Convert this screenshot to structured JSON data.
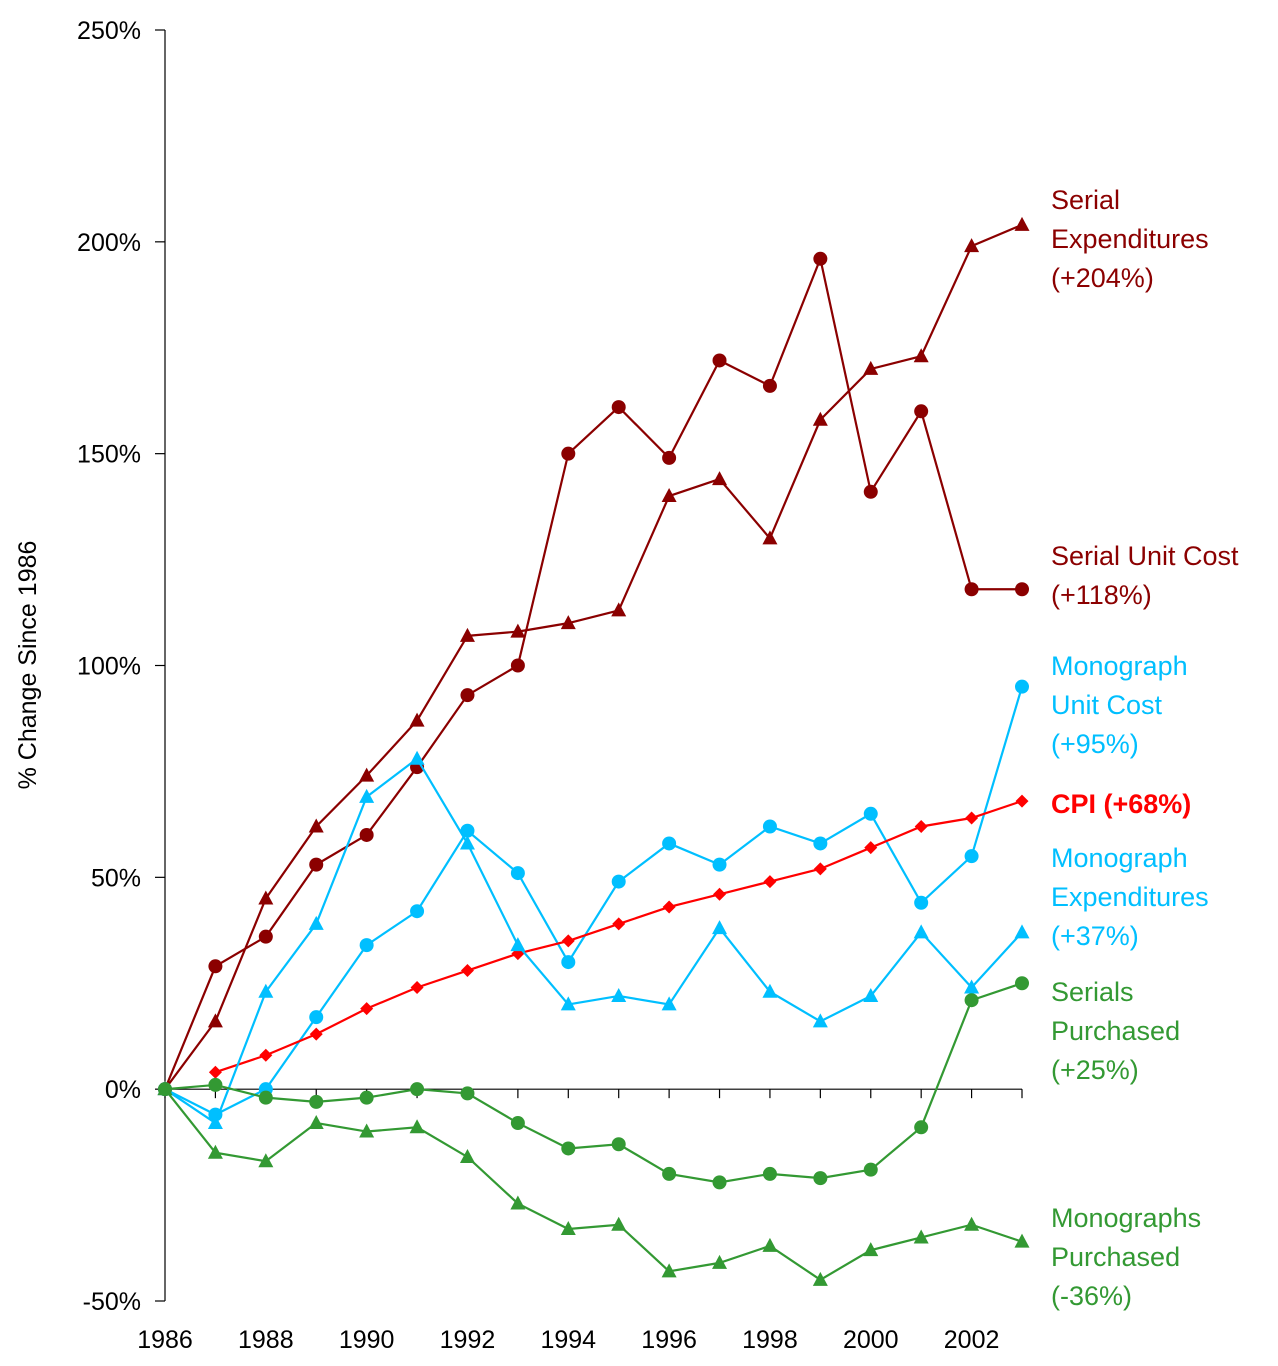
{
  "chart_data": {
    "type": "line",
    "title": "",
    "xlabel": "",
    "ylabel": "% Change Since 1986",
    "x": [
      1986,
      1987,
      1988,
      1989,
      1990,
      1991,
      1992,
      1993,
      1994,
      1995,
      1996,
      1997,
      1998,
      1999,
      2000,
      2001,
      2002,
      2003
    ],
    "x_ticks": [
      "1986",
      "1988",
      "1990",
      "1992",
      "1994",
      "1996",
      "1998",
      "2000",
      "2002"
    ],
    "y_ticks": [
      "-50%",
      "0%",
      "50%",
      "100%",
      "150%",
      "200%",
      "250%"
    ],
    "ylim": [
      -50,
      250
    ],
    "xlim": [
      1986,
      2003
    ],
    "grid": false,
    "legend": "direct labels at right",
    "series": [
      {
        "name": "Serial Expenditures (+204%)",
        "label_lines": [
          "Serial",
          "Expenditures",
          "(+204%)"
        ],
        "color": "#8b0000",
        "marker": "triangle",
        "x": [
          1986,
          1987,
          1988,
          1989,
          1990,
          1991,
          1992,
          1993,
          1994,
          1995,
          1996,
          1997,
          1998,
          1999,
          2000,
          2001,
          2002,
          2003
        ],
        "values": [
          0,
          16,
          45,
          62,
          74,
          87,
          107,
          108,
          110,
          113,
          140,
          144,
          130,
          158,
          170,
          173,
          199,
          204
        ]
      },
      {
        "name": "Serial Unit Cost (+118%)",
        "label_lines": [
          "Serial Unit Cost",
          "(+118%)"
        ],
        "color": "#8b0000",
        "marker": "circle",
        "x": [
          1986,
          1987,
          1988,
          1989,
          1990,
          1991,
          1992,
          1993,
          1994,
          1995,
          1996,
          1997,
          1998,
          1999,
          2000,
          2001,
          2002,
          2003
        ],
        "values": [
          0,
          29,
          36,
          53,
          60,
          76,
          93,
          100,
          150,
          161,
          149,
          172,
          166,
          196,
          141,
          160,
          118,
          118
        ]
      },
      {
        "name": "Monograph Unit Cost (+95%)",
        "label_lines": [
          "Monograph",
          "Unit Cost",
          "(+95%)"
        ],
        "color": "#00bfff",
        "marker": "circle",
        "x": [
          1986,
          1987,
          1988,
          1989,
          1990,
          1991,
          1992,
          1993,
          1994,
          1995,
          1996,
          1997,
          1998,
          1999,
          2000,
          2001,
          2002,
          2003
        ],
        "values": [
          0,
          -6,
          0,
          17,
          34,
          42,
          61,
          51,
          30,
          49,
          58,
          53,
          62,
          58,
          65,
          44,
          55,
          95
        ]
      },
      {
        "name": "CPI (+68%)",
        "label_lines": [
          "CPI (+68%)"
        ],
        "color": "#ff0000",
        "marker": "diamond",
        "bold": true,
        "x": [
          1987,
          1988,
          1989,
          1990,
          1991,
          1992,
          1993,
          1994,
          1995,
          1996,
          1997,
          1998,
          1999,
          2000,
          2001,
          2002,
          2003
        ],
        "values": [
          4,
          8,
          13,
          19,
          24,
          28,
          32,
          35,
          39,
          43,
          46,
          49,
          52,
          57,
          62,
          64,
          68
        ]
      },
      {
        "name": "Monograph Expenditures (+37%)",
        "label_lines": [
          "Monograph",
          "Expenditures",
          "(+37%)"
        ],
        "color": "#00bfff",
        "marker": "triangle",
        "x": [
          1986,
          1987,
          1988,
          1989,
          1990,
          1991,
          1992,
          1993,
          1994,
          1995,
          1996,
          1997,
          1998,
          1999,
          2000,
          2001,
          2002,
          2003
        ],
        "values": [
          0,
          -8,
          23,
          39,
          69,
          78,
          58,
          34,
          20,
          22,
          20,
          38,
          23,
          16,
          22,
          37,
          24,
          37
        ]
      },
      {
        "name": "Serials Purchased (+25%)",
        "label_lines": [
          "Serials",
          "Purchased",
          "(+25%)"
        ],
        "color": "#339933",
        "marker": "circle",
        "x": [
          1986,
          1987,
          1988,
          1989,
          1990,
          1991,
          1992,
          1993,
          1994,
          1995,
          1996,
          1997,
          1998,
          1999,
          2000,
          2001,
          2002,
          2003
        ],
        "values": [
          0,
          1,
          -2,
          -3,
          -2,
          0,
          -1,
          -8,
          -14,
          -13,
          -20,
          -22,
          -20,
          -21,
          -19,
          -9,
          21,
          25
        ]
      },
      {
        "name": "Monographs Purchased (-36%)",
        "label_lines": [
          "Monographs",
          "Purchased",
          "(-36%)"
        ],
        "color": "#339933",
        "marker": "triangle",
        "x": [
          1986,
          1987,
          1988,
          1989,
          1990,
          1991,
          1992,
          1993,
          1994,
          1995,
          1996,
          1997,
          1998,
          1999,
          2000,
          2001,
          2002,
          2003
        ],
        "values": [
          0,
          -15,
          -17,
          -8,
          -10,
          -9,
          -16,
          -27,
          -33,
          -32,
          -43,
          -41,
          -37,
          -45,
          -38,
          -35,
          -32,
          -36
        ]
      }
    ]
  }
}
